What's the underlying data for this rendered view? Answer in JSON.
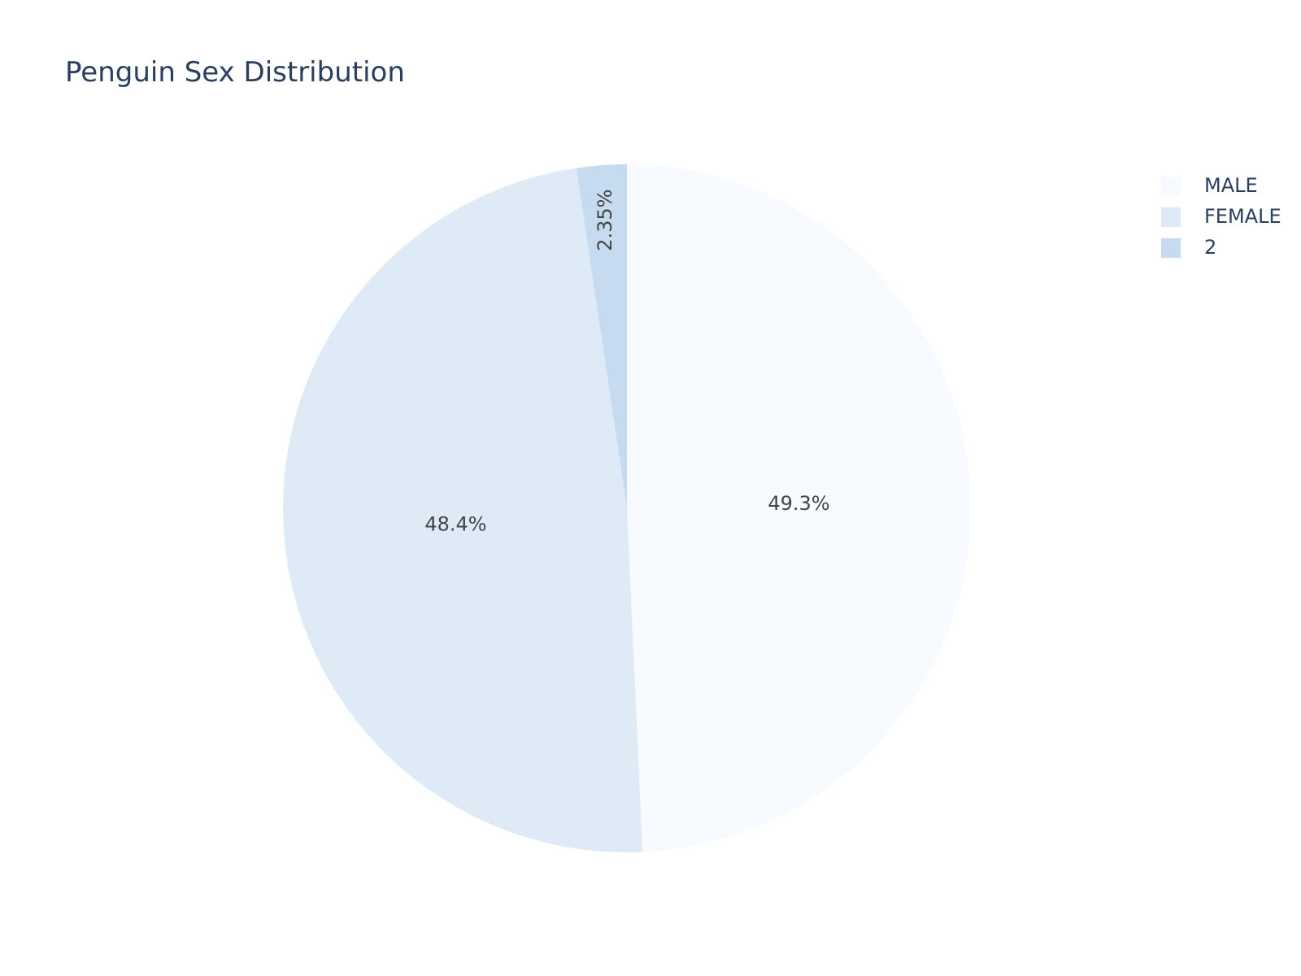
{
  "chart_data": {
    "type": "pie",
    "title": "Penguin Sex Distribution",
    "categories": [
      "MALE",
      "FEMALE",
      "2"
    ],
    "values": [
      49.3,
      48.4,
      2.35
    ],
    "labels": [
      "49.3%",
      "48.4%",
      "2.35%"
    ],
    "colors": [
      "#f7fbff",
      "#deebf7",
      "#c6dbef"
    ],
    "direction": "clockwise",
    "start_angle": "12 o'clock",
    "legend": {
      "placement": "top-right",
      "entries": [
        "MALE",
        "FEMALE",
        "2"
      ]
    }
  }
}
